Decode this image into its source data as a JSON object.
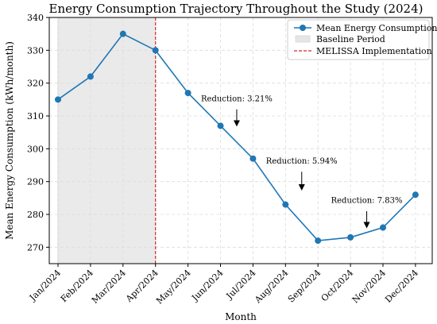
{
  "chart_data": {
    "type": "line",
    "title": "Energy Consumption Trajectory Throughout the Study (2024)",
    "xlabel": "Month",
    "ylabel": "Mean Energy Consumption (kWh/month)",
    "ylim": [
      265,
      340
    ],
    "yticks": [
      270,
      280,
      290,
      300,
      310,
      320,
      330,
      340
    ],
    "categories": [
      "Jan/2024",
      "Feb/2024",
      "Mar/2024",
      "Apr/2024",
      "May/2024",
      "Jun/2024",
      "Jul/2024",
      "Aug/2024",
      "Sep/2024",
      "Oct/2024",
      "Nov/2024",
      "Dec/2024"
    ],
    "series": [
      {
        "name": "Mean Energy Consumption",
        "color": "#1f77b4",
        "values": [
          315,
          322,
          335,
          330,
          317,
          307,
          297,
          283,
          272,
          273,
          276,
          286
        ]
      }
    ],
    "baseline_period": {
      "label": "Baseline Period",
      "start_index": 0,
      "end_index": 3,
      "color": "#e6e6e6"
    },
    "intervention": {
      "label": "MELISSA Implementation",
      "index": 3,
      "color": "#d62728"
    },
    "annotations": [
      {
        "text": "Reduction: 3.21%",
        "text_x": 5.5,
        "text_y": 314.5,
        "arrow_x": 5.5,
        "arrow_from_y": 312,
        "arrow_to_y": 307
      },
      {
        "text": "Reduction: 5.94%",
        "text_x": 7.5,
        "text_y": 295.5,
        "arrow_x": 7.5,
        "arrow_from_y": 293,
        "arrow_to_y": 287.5
      },
      {
        "text": "Reduction: 7.83%",
        "text_x": 9.5,
        "text_y": 283.5,
        "arrow_x": 9.5,
        "arrow_from_y": 281,
        "arrow_to_y": 276
      }
    ],
    "grid": true,
    "legend_position": "top-right"
  }
}
